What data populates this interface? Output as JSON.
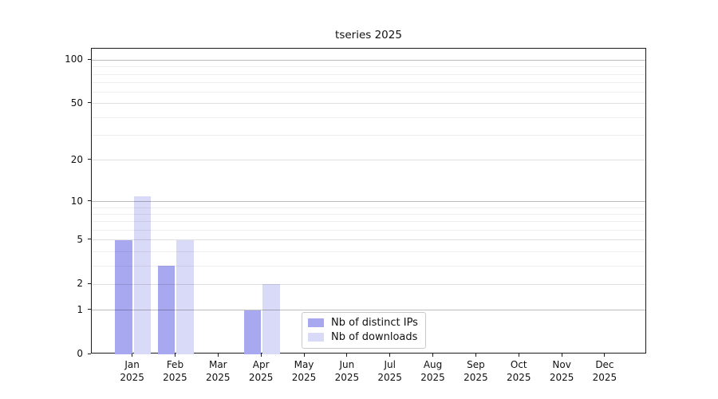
{
  "chart_data": {
    "type": "bar",
    "title": "tseries 2025",
    "x_tick_months": [
      "Jan",
      "Feb",
      "Mar",
      "Apr",
      "May",
      "Jun",
      "Jul",
      "Aug",
      "Sep",
      "Oct",
      "Nov",
      "Dec"
    ],
    "x_tick_year": "2025",
    "series": [
      {
        "name": "Nb of distinct IPs",
        "color": "#a8a8f0",
        "values": [
          5,
          3,
          0,
          1,
          0,
          0,
          0,
          0,
          0,
          0,
          0,
          0
        ]
      },
      {
        "name": "Nb of downloads",
        "color": "#d9d9f8",
        "values": [
          11,
          5,
          0,
          2,
          0,
          0,
          0,
          0,
          0,
          0,
          0,
          0
        ]
      }
    ],
    "y_axis": {
      "scale": "log1p",
      "ylim": [
        0,
        120
      ],
      "tick_labels": [
        "0",
        "1",
        "2",
        "5",
        "10",
        "20",
        "50",
        "100"
      ],
      "tick_values": [
        0,
        1,
        2,
        5,
        10,
        20,
        50,
        100
      ],
      "decade_gridlines": [
        1,
        10,
        100
      ],
      "minor_gridlines": [
        3,
        4,
        6,
        7,
        8,
        9,
        30,
        40,
        60,
        70,
        80,
        90
      ]
    },
    "legend": {
      "position": "lower center"
    },
    "grid": true,
    "colors": {
      "spine": "#1b1b1b",
      "background": "#ffffff"
    }
  }
}
